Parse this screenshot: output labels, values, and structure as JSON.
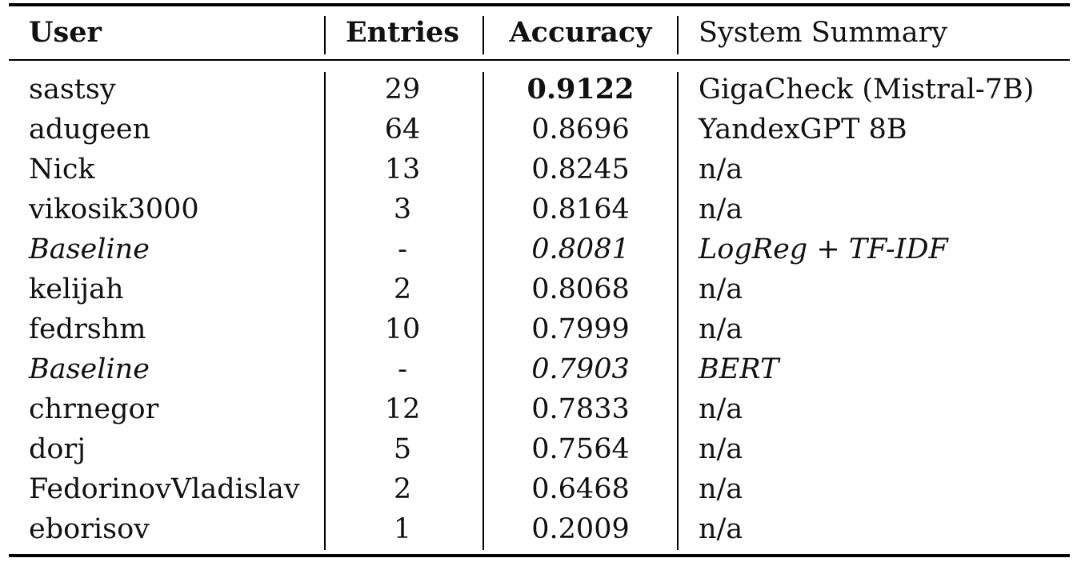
{
  "table": {
    "headers": {
      "user": "User",
      "entries": "Entries",
      "accuracy": "Accuracy",
      "system_summary": "System Summary"
    },
    "rows": [
      {
        "user": "sastsy",
        "entries": "29",
        "accuracy": "0.9122",
        "system": "GigaCheck (Mistral-7B)",
        "best": true,
        "baseline": false
      },
      {
        "user": "adugeen",
        "entries": "64",
        "accuracy": "0.8696",
        "system": "YandexGPT 8B",
        "best": false,
        "baseline": false
      },
      {
        "user": "Nick",
        "entries": "13",
        "accuracy": "0.8245",
        "system": "n/a",
        "best": false,
        "baseline": false
      },
      {
        "user": "vikosik3000",
        "entries": "3",
        "accuracy": "0.8164",
        "system": "n/a",
        "best": false,
        "baseline": false
      },
      {
        "user": "Baseline",
        "entries": "-",
        "accuracy": "0.8081",
        "system": "LogReg + TF-IDF",
        "best": false,
        "baseline": true
      },
      {
        "user": "kelijah",
        "entries": "2",
        "accuracy": "0.8068",
        "system": "n/a",
        "best": false,
        "baseline": false
      },
      {
        "user": "fedrshm",
        "entries": "10",
        "accuracy": "0.7999",
        "system": "n/a",
        "best": false,
        "baseline": false
      },
      {
        "user": "Baseline",
        "entries": "-",
        "accuracy": "0.7903",
        "system": "BERT",
        "best": false,
        "baseline": true
      },
      {
        "user": "chrnegor",
        "entries": "12",
        "accuracy": "0.7833",
        "system": "n/a",
        "best": false,
        "baseline": false
      },
      {
        "user": "dorj",
        "entries": "5",
        "accuracy": "0.7564",
        "system": "n/a",
        "best": false,
        "baseline": false
      },
      {
        "user": "FedorinovVladislav",
        "entries": "2",
        "accuracy": "0.6468",
        "system": "n/a",
        "best": false,
        "baseline": false
      },
      {
        "user": "eborisov",
        "entries": "1",
        "accuracy": "0.2009",
        "system": "n/a",
        "best": false,
        "baseline": false
      }
    ]
  }
}
